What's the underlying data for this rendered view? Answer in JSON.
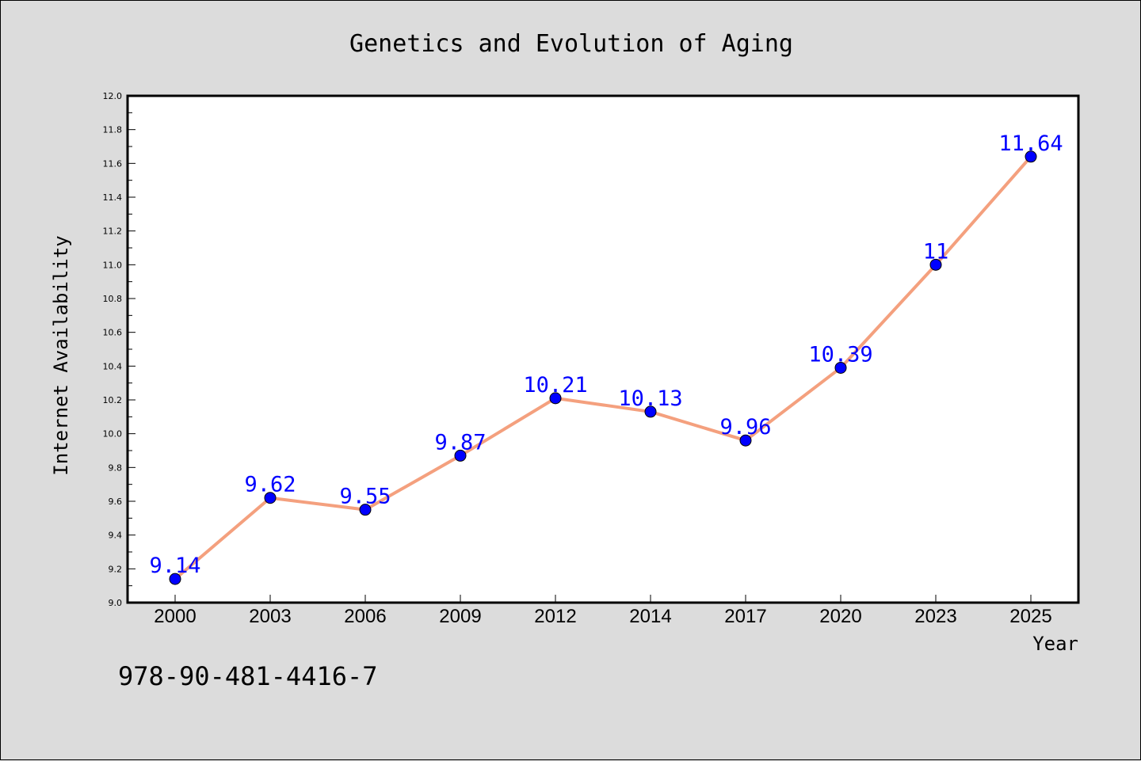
{
  "isbn": "978-90-481-4416-7",
  "chart_data": {
    "type": "line",
    "title": "Genetics and Evolution of Aging",
    "xlabel": "Year",
    "ylabel": "Internet Availability",
    "categories": [
      "2000",
      "2003",
      "2006",
      "2009",
      "2012",
      "2014",
      "2017",
      "2020",
      "2023",
      "2025"
    ],
    "series": [
      {
        "values": [
          9.14,
          9.62,
          9.55,
          9.87,
          10.21,
          10.13,
          9.96,
          10.39,
          11,
          11.64
        ],
        "labels": [
          "9.14",
          "9.62",
          "9.55",
          "9.87",
          "10.21",
          "10.13",
          "9.96",
          "10.39",
          "11",
          "11.64"
        ],
        "line_color": "#f4a07e",
        "marker_color": "#0000ff"
      }
    ],
    "ylim": [
      9.0,
      12.0
    ],
    "yticks": [
      "9.0",
      "9.2",
      "9.4",
      "9.6",
      "9.8",
      "10.0",
      "10.2",
      "10.4",
      "10.6",
      "10.8",
      "11.0",
      "11.2",
      "11.4",
      "11.6",
      "11.8",
      "12.0"
    ],
    "grid": false,
    "legend": "none"
  }
}
